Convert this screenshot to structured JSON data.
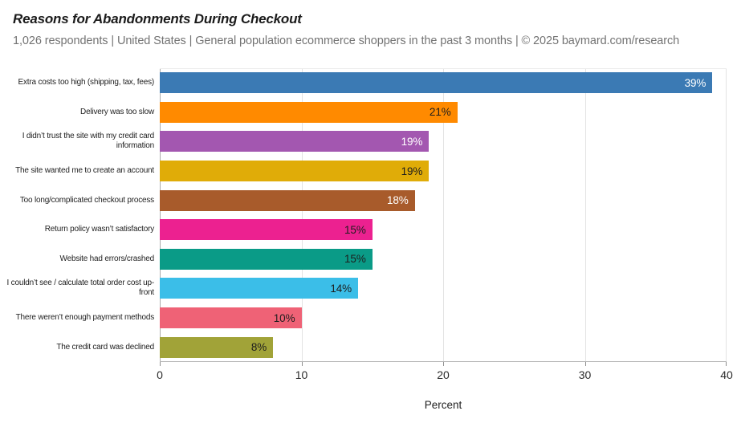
{
  "chart_data": {
    "type": "bar",
    "orientation": "horizontal",
    "title": "Reasons for Abandonments During Checkout",
    "subtitle": "1,026 respondents  |  United States  |  General population ecommerce shoppers in the past 3 months | © 2025 baymard.com/research",
    "xlabel": "Percent",
    "xlim": [
      0,
      40
    ],
    "x_ticks": [
      "0",
      "10",
      "20",
      "30",
      "40"
    ],
    "x_tick_values": [
      0,
      10,
      20,
      30,
      40
    ],
    "grid": true,
    "legend_position": "none",
    "categories": [
      "Extra costs too high (shipping, tax, fees)",
      "Delivery was too slow",
      "I didn’t trust the site with my credit card information",
      "The site wanted me to create an account",
      "Too long/complicated checkout process",
      "Return policy wasn’t satisfactory",
      "Website had errors/crashed",
      "I couldn’t see / calculate total order cost up-front",
      "There weren’t enough payment methods",
      "The credit card was declined"
    ],
    "values": [
      39,
      21,
      19,
      19,
      18,
      15,
      15,
      14,
      10,
      8
    ],
    "value_labels": [
      "39%",
      "21%",
      "19%",
      "19%",
      "18%",
      "15%",
      "15%",
      "14%",
      "10%",
      "8%"
    ],
    "bar_colors": [
      "#3b7ab4",
      "#ff8a00",
      "#a357b0",
      "#e0ac08",
      "#a85b2b",
      "#ec2190",
      "#0a9b87",
      "#3bbee8",
      "#ef6276",
      "#a1a338"
    ],
    "value_label_colors": [
      "#ffffff",
      "#1d1d1d",
      "#ffffff",
      "#1d1d1d",
      "#ffffff",
      "#1d1d1d",
      "#1d1d1d",
      "#1d1d1d",
      "#1d1d1d",
      "#1d1d1d"
    ]
  },
  "colors": {
    "gridline": "#e3e3e3",
    "zero_line": "#ababab",
    "axis_line": "#b5b5b5",
    "title_text": "#1b1b1b",
    "subtitle_text": "#737373",
    "label_text": "#1f1f1f",
    "background": "#ffffff"
  }
}
